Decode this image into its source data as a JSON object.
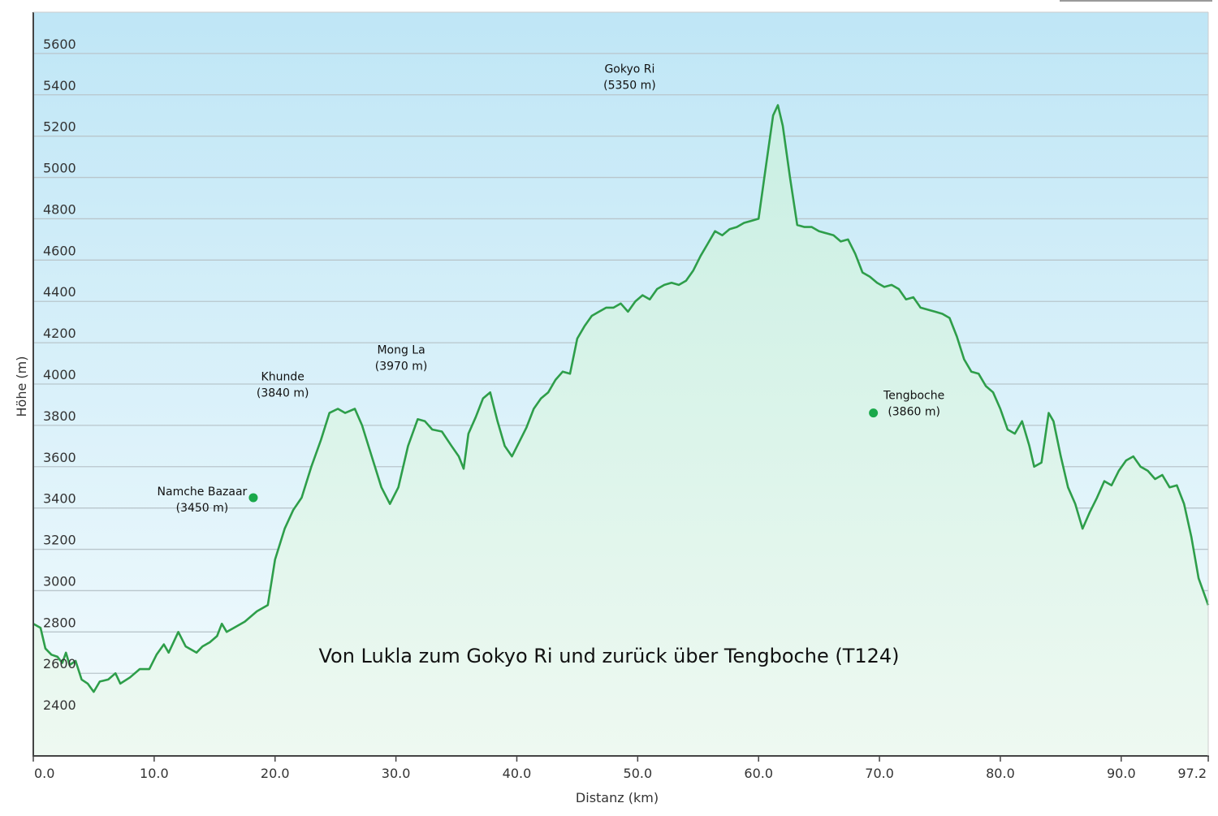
{
  "chart_data": {
    "type": "area",
    "title": "Von Lukla zum Gokyo Ri und zurück über Tengboche (T124)",
    "xlabel": "Distanz  (km)",
    "ylabel": "Höhe (m)",
    "xlim": [
      0,
      97.2
    ],
    "ylim": [
      2200,
      5800
    ],
    "x_ticks": [
      "0.0",
      "10.0",
      "20.0",
      "30.0",
      "40.0",
      "50.0",
      "60.0",
      "70.0",
      "80.0",
      "90.0",
      "97.2"
    ],
    "y_ticks": [
      "2400",
      "2600",
      "2800",
      "3000",
      "3200",
      "3400",
      "3600",
      "3800",
      "4000",
      "4200",
      "4400",
      "4600",
      "4800",
      "5000",
      "5200",
      "5400",
      "5600"
    ],
    "grid": true,
    "colors": {
      "line": "#2e9e4a",
      "fill_top": "#c9efe3",
      "fill_bottom": "#eef9f1",
      "background_top": "#bfe6f6",
      "background_bottom": "#f3fbfd",
      "grid": "#b9c6cc",
      "marker": "#19a84a"
    },
    "series": [
      {
        "values": [
          [
            0.0,
            2840
          ],
          [
            0.6,
            2820
          ],
          [
            1.0,
            2720
          ],
          [
            1.5,
            2690
          ],
          [
            2.0,
            2680
          ],
          [
            2.4,
            2650
          ],
          [
            2.7,
            2700
          ],
          [
            3.0,
            2640
          ],
          [
            3.5,
            2660
          ],
          [
            4.0,
            2570
          ],
          [
            4.5,
            2550
          ],
          [
            5.0,
            2510
          ],
          [
            5.5,
            2560
          ],
          [
            6.2,
            2570
          ],
          [
            6.8,
            2600
          ],
          [
            7.2,
            2550
          ],
          [
            8.0,
            2580
          ],
          [
            8.8,
            2620
          ],
          [
            9.6,
            2620
          ],
          [
            10.2,
            2690
          ],
          [
            10.8,
            2740
          ],
          [
            11.2,
            2700
          ],
          [
            12.0,
            2800
          ],
          [
            12.6,
            2730
          ],
          [
            13.5,
            2700
          ],
          [
            14.0,
            2730
          ],
          [
            14.6,
            2750
          ],
          [
            15.2,
            2780
          ],
          [
            15.6,
            2840
          ],
          [
            16.0,
            2800
          ],
          [
            16.6,
            2820
          ],
          [
            17.5,
            2850
          ],
          [
            18.5,
            2900
          ],
          [
            19.4,
            2930
          ],
          [
            20.0,
            3150
          ],
          [
            20.8,
            3300
          ],
          [
            21.5,
            3390
          ],
          [
            22.2,
            3450
          ],
          [
            23.0,
            3600
          ],
          [
            23.8,
            3730
          ],
          [
            24.5,
            3860
          ],
          [
            25.2,
            3880
          ],
          [
            25.8,
            3860
          ],
          [
            26.6,
            3880
          ],
          [
            27.2,
            3800
          ],
          [
            28.0,
            3650
          ],
          [
            28.8,
            3500
          ],
          [
            29.5,
            3420
          ],
          [
            30.2,
            3500
          ],
          [
            31.0,
            3700
          ],
          [
            31.8,
            3830
          ],
          [
            32.4,
            3820
          ],
          [
            33.0,
            3780
          ],
          [
            33.8,
            3770
          ],
          [
            34.6,
            3700
          ],
          [
            35.2,
            3650
          ],
          [
            35.6,
            3590
          ],
          [
            36.0,
            3760
          ],
          [
            36.6,
            3840
          ],
          [
            37.2,
            3930
          ],
          [
            37.8,
            3960
          ],
          [
            38.4,
            3820
          ],
          [
            39.0,
            3700
          ],
          [
            39.6,
            3650
          ],
          [
            40.2,
            3720
          ],
          [
            40.8,
            3790
          ],
          [
            41.4,
            3880
          ],
          [
            42.0,
            3930
          ],
          [
            42.6,
            3960
          ],
          [
            43.2,
            4020
          ],
          [
            43.8,
            4060
          ],
          [
            44.4,
            4050
          ],
          [
            45.0,
            4220
          ],
          [
            45.6,
            4280
          ],
          [
            46.2,
            4330
          ],
          [
            46.8,
            4350
          ],
          [
            47.4,
            4370
          ],
          [
            48.0,
            4370
          ],
          [
            48.6,
            4390
          ],
          [
            49.2,
            4350
          ],
          [
            49.8,
            4400
          ],
          [
            50.4,
            4430
          ],
          [
            51.0,
            4410
          ],
          [
            51.6,
            4460
          ],
          [
            52.2,
            4480
          ],
          [
            52.8,
            4490
          ],
          [
            53.4,
            4480
          ],
          [
            54.0,
            4500
          ],
          [
            54.6,
            4550
          ],
          [
            55.2,
            4620
          ],
          [
            55.8,
            4680
          ],
          [
            56.4,
            4740
          ],
          [
            57.0,
            4720
          ],
          [
            57.6,
            4750
          ],
          [
            58.2,
            4760
          ],
          [
            58.8,
            4780
          ],
          [
            59.4,
            4790
          ],
          [
            60.0,
            4800
          ],
          [
            60.6,
            5050
          ],
          [
            61.2,
            5300
          ],
          [
            61.6,
            5350
          ],
          [
            62.0,
            5250
          ],
          [
            62.6,
            5000
          ],
          [
            63.2,
            4770
          ],
          [
            63.8,
            4760
          ],
          [
            64.4,
            4760
          ],
          [
            65.0,
            4740
          ],
          [
            65.6,
            4730
          ],
          [
            66.2,
            4720
          ],
          [
            66.8,
            4690
          ],
          [
            67.4,
            4700
          ],
          [
            68.0,
            4630
          ],
          [
            68.6,
            4540
          ],
          [
            69.2,
            4520
          ],
          [
            69.8,
            4490
          ],
          [
            70.4,
            4470
          ],
          [
            71.0,
            4480
          ],
          [
            71.6,
            4460
          ],
          [
            72.2,
            4410
          ],
          [
            72.8,
            4420
          ],
          [
            73.4,
            4370
          ],
          [
            74.0,
            4360
          ],
          [
            74.6,
            4350
          ],
          [
            75.2,
            4340
          ],
          [
            75.8,
            4320
          ],
          [
            76.4,
            4230
          ],
          [
            77.0,
            4120
          ],
          [
            77.6,
            4060
          ],
          [
            78.2,
            4050
          ],
          [
            78.8,
            3990
          ],
          [
            79.4,
            3960
          ],
          [
            80.0,
            3880
          ],
          [
            80.6,
            3780
          ],
          [
            81.2,
            3760
          ],
          [
            81.8,
            3820
          ],
          [
            82.4,
            3700
          ],
          [
            82.8,
            3600
          ],
          [
            83.4,
            3620
          ],
          [
            84.0,
            3860
          ],
          [
            84.4,
            3820
          ],
          [
            85.0,
            3650
          ],
          [
            85.6,
            3500
          ],
          [
            86.2,
            3420
          ],
          [
            86.8,
            3300
          ],
          [
            87.4,
            3380
          ],
          [
            88.0,
            3450
          ],
          [
            88.6,
            3530
          ],
          [
            89.2,
            3510
          ],
          [
            89.8,
            3580
          ],
          [
            90.4,
            3630
          ],
          [
            91.0,
            3650
          ],
          [
            91.6,
            3600
          ],
          [
            92.2,
            3580
          ],
          [
            92.8,
            3540
          ],
          [
            93.4,
            3560
          ],
          [
            94.0,
            3500
          ],
          [
            94.6,
            3510
          ],
          [
            95.2,
            3420
          ],
          [
            95.8,
            3260
          ],
          [
            96.4,
            3060
          ],
          [
            97.2,
            2930
          ]
        ]
      }
    ],
    "annotations": [
      {
        "name": "Namche Bazaar",
        "elev": "(3450 m)",
        "x": 18.2,
        "y": 3450,
        "marker": true,
        "label_pos": "left"
      },
      {
        "name": "Khunde",
        "elev": "(3840 m)",
        "x": 20.5,
        "y": 3840,
        "marker": false,
        "label_pos": "above"
      },
      {
        "name": "Mong La",
        "elev": "(3970 m)",
        "x": 30.3,
        "y": 3970,
        "marker": false,
        "label_pos": "above"
      },
      {
        "name": "Gokyo Ri",
        "elev": "(5350 m)",
        "x": 49.2,
        "y": 5350,
        "marker": false,
        "label_pos": "above"
      },
      {
        "name": "Tengboche",
        "elev": "(3860 m)",
        "x": 69.5,
        "y": 3860,
        "marker": true,
        "label_pos": "right"
      }
    ]
  }
}
